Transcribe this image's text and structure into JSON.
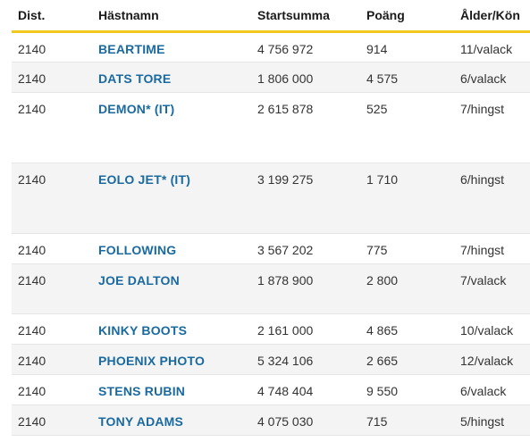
{
  "headers": {
    "dist": "Dist.",
    "name": "Hästnamn",
    "prize": "Startsumma",
    "points": "Poäng",
    "age": "Ålder/Kön"
  },
  "rows": [
    {
      "dist": "2140",
      "name": "BEARTIME",
      "prize": "4 756 972",
      "points": "914",
      "age": "11/valack"
    },
    {
      "dist": "2140",
      "name": "DATS TORE",
      "prize": "1 806 000",
      "points": "4 575",
      "age": "6/valack"
    },
    {
      "dist": "2140",
      "name": "DEMON* (IT)",
      "prize": "2 615 878",
      "points": "525",
      "age": "7/hingst"
    },
    {
      "dist": "2140",
      "name": "EOLO JET* (IT)",
      "prize": "3 199 275",
      "points": "1 710",
      "age": "6/hingst"
    },
    {
      "dist": "2140",
      "name": "FOLLOWING",
      "prize": "3 567 202",
      "points": "775",
      "age": "7/hingst"
    },
    {
      "dist": "2140",
      "name": "JOE DALTON",
      "prize": "1 878 900",
      "points": "2 800",
      "age": "7/valack"
    },
    {
      "dist": "2140",
      "name": "KINKY BOOTS",
      "prize": "2 161 000",
      "points": "4 865",
      "age": "10/valack"
    },
    {
      "dist": "2140",
      "name": "PHOENIX PHOTO",
      "prize": "5 324 106",
      "points": "2 665",
      "age": "12/valack"
    },
    {
      "dist": "2140",
      "name": "STENS RUBIN",
      "prize": "4 748 404",
      "points": "9 550",
      "age": "6/valack"
    },
    {
      "dist": "2140",
      "name": "TONY ADAMS",
      "prize": "4 075 030",
      "points": "715",
      "age": "5/hingst"
    }
  ],
  "colors": {
    "accent": "#f2c81e",
    "link": "#1a6aa0",
    "row_alt": "#f4f4f4"
  }
}
